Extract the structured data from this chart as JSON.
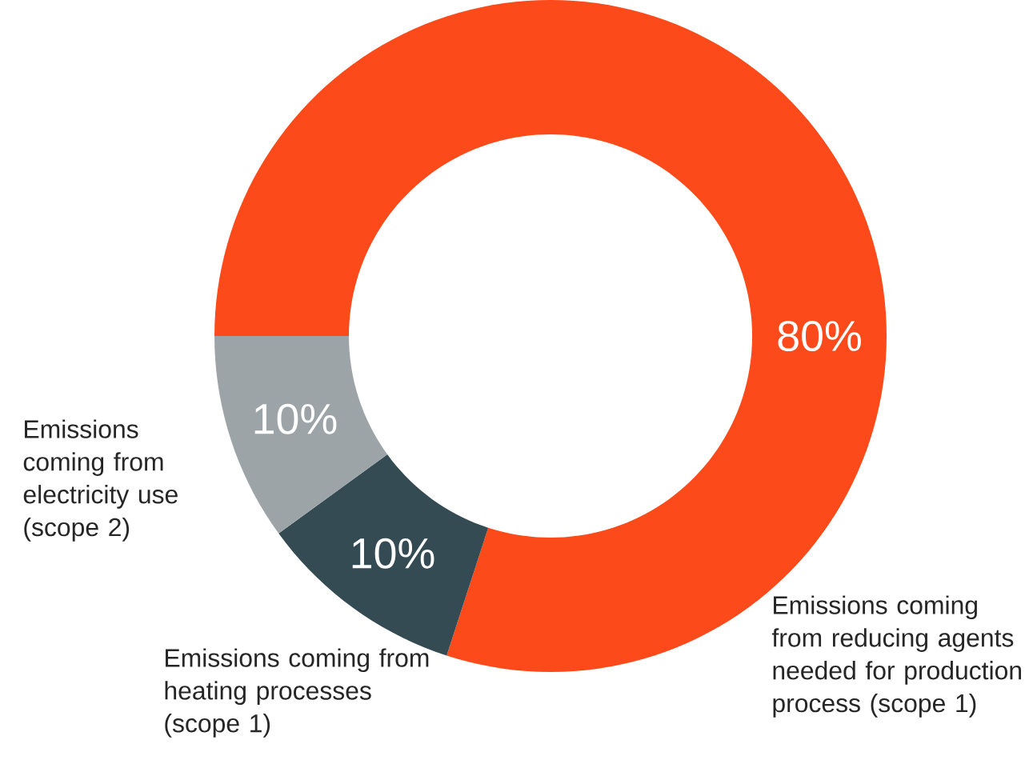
{
  "chart_data": {
    "type": "donut",
    "categories": [
      "Emissions coming from reducing agents needed for production process (scope 1)",
      "Emissions coming from heating processes (scope 1)",
      "Emissions coming from electricity use (scope 2)"
    ],
    "values": [
      80,
      10,
      10
    ],
    "value_labels": [
      "80%",
      "10%",
      "10%"
    ],
    "colors": [
      "#fc4a1a",
      "#354b53",
      "#9ca4a7"
    ]
  }
}
